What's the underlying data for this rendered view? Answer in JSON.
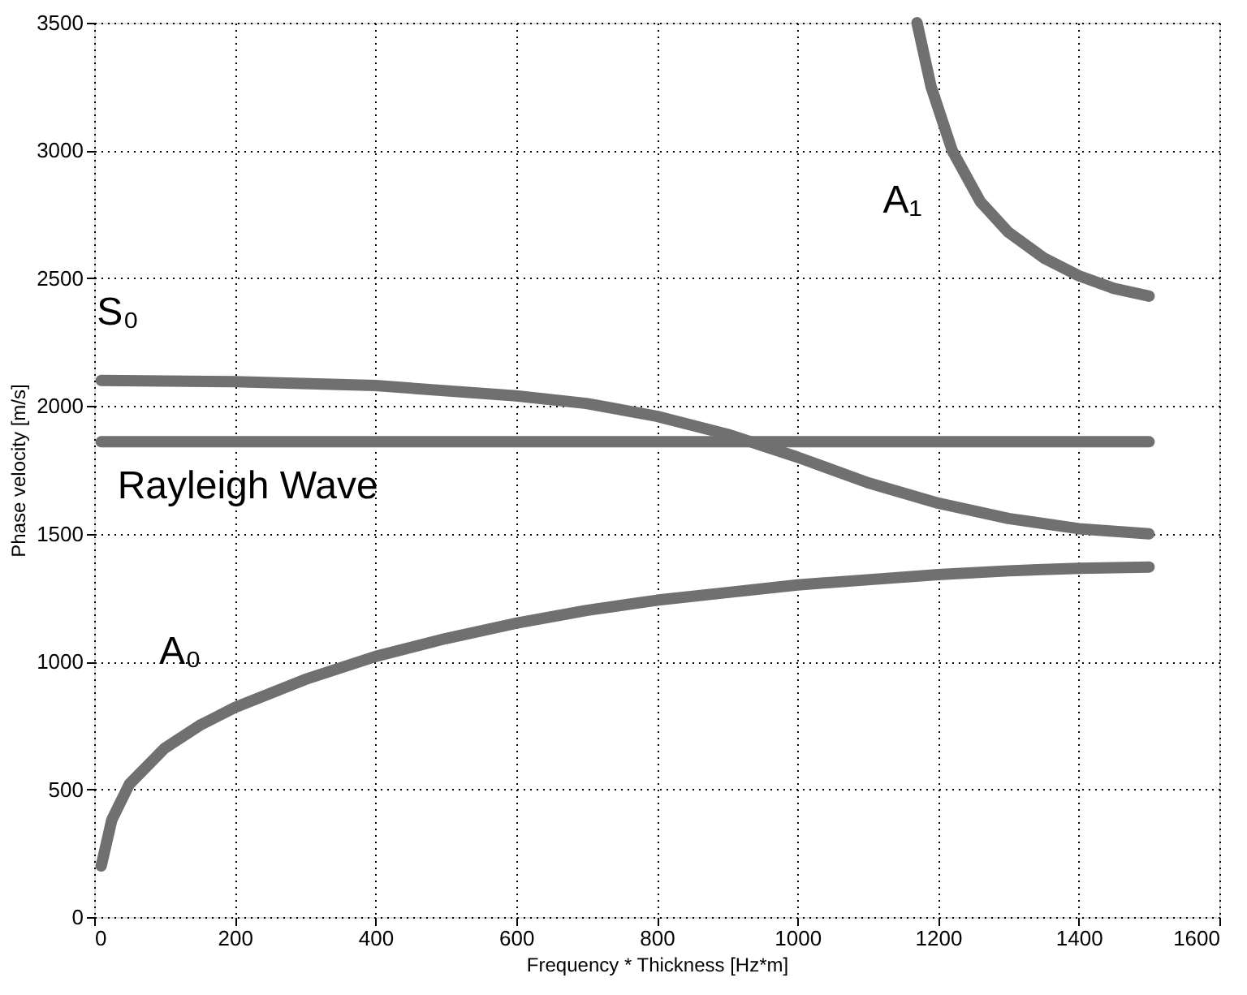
{
  "chart_data": {
    "type": "line",
    "xlabel": "Frequency * Thickness [Hz*m]",
    "ylabel": "Phase velocity [m/s]",
    "xlim": [
      0,
      1600
    ],
    "xticks": [
      0,
      200,
      400,
      600,
      800,
      1000,
      1200,
      1400,
      1600
    ],
    "ylim": [
      0,
      3500
    ],
    "yticks": [
      0,
      500,
      1000,
      1500,
      2000,
      2500,
      3000,
      3500
    ],
    "grid": true,
    "line_style": "solid",
    "series": [
      {
        "name": "A₀",
        "color": "#707070",
        "x": [
          10,
          25,
          50,
          100,
          150,
          200,
          300,
          400,
          500,
          600,
          700,
          800,
          900,
          1000,
          1100,
          1200,
          1300,
          1400,
          1500
        ],
        "values": [
          200,
          380,
          520,
          660,
          750,
          820,
          930,
          1020,
          1090,
          1150,
          1200,
          1240,
          1270,
          1300,
          1320,
          1340,
          1355,
          1365,
          1370
        ]
      },
      {
        "name": "S₀",
        "color": "#707070",
        "x": [
          10,
          200,
          400,
          600,
          700,
          800,
          900,
          1000,
          1100,
          1200,
          1300,
          1400,
          1500
        ],
        "values": [
          2100,
          2095,
          2080,
          2040,
          2010,
          1960,
          1890,
          1800,
          1700,
          1620,
          1560,
          1520,
          1500
        ]
      },
      {
        "name": "Rayleigh Wave",
        "color": "#707070",
        "x": [
          10,
          1500
        ],
        "values": [
          1860,
          1860
        ]
      },
      {
        "name": "A₁",
        "color": "#707070",
        "x": [
          1170,
          1190,
          1220,
          1260,
          1300,
          1350,
          1400,
          1450,
          1500
        ],
        "values": [
          3500,
          3250,
          3000,
          2800,
          2680,
          2580,
          2510,
          2460,
          2430
        ]
      }
    ]
  }
}
